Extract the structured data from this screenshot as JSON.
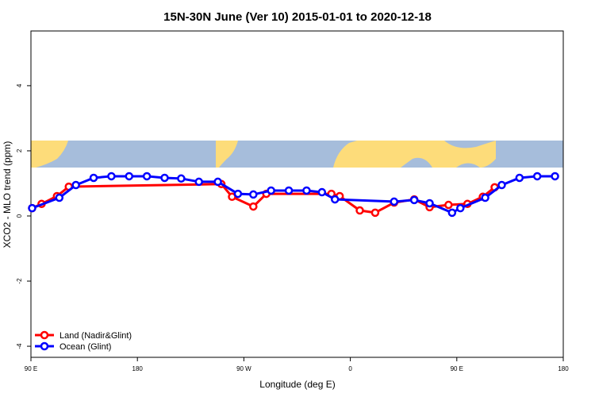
{
  "chart_data": {
    "type": "line",
    "title": "15N-30N June (Ver 10)   2015-01-01 to 2020-12-18",
    "x_label": "Longitude (deg E)",
    "y_label": "XCO2 - MLO trend (ppm)",
    "xlim": [
      90,
      540
    ],
    "ylim": [
      -4.34,
      5.68
    ],
    "xticks": [
      {
        "value": 90,
        "label": "90 E"
      },
      180,
      {
        "value": 270,
        "label": "90 W"
      },
      {
        "value": 360,
        "label": "0"
      },
      {
        "value": 450,
        "label": "90 E"
      },
      {
        "value": 540,
        "label": "180"
      }
    ],
    "yticks": [
      -4,
      -2,
      0,
      2,
      4
    ],
    "legend": "bottom-left",
    "series": [
      {
        "name": "Land (Nadir&Glint)",
        "color": "#ff0000",
        "x": [
          91,
          99,
          112,
          122,
          251,
          260,
          278,
          289,
          344,
          351,
          368,
          381,
          397,
          414,
          427,
          443,
          459,
          472,
          482
        ],
        "values": [
          0.24,
          0.37,
          0.61,
          0.9,
          0.98,
          0.59,
          0.29,
          0.68,
          0.68,
          0.61,
          0.17,
          0.1,
          0.41,
          0.51,
          0.27,
          0.34,
          0.37,
          0.59,
          0.88
        ]
      },
      {
        "name": "Ocean (Glint)",
        "color": "#0000ff",
        "x": [
          91,
          114,
          128,
          143,
          158,
          173,
          188,
          203,
          217,
          232,
          248,
          265,
          278,
          293,
          308,
          323,
          336,
          347,
          397,
          414,
          427,
          446,
          453,
          474,
          488,
          503,
          518,
          533
        ],
        "values": [
          0.24,
          0.56,
          0.95,
          1.17,
          1.22,
          1.22,
          1.22,
          1.17,
          1.15,
          1.05,
          1.05,
          0.68,
          0.66,
          0.78,
          0.78,
          0.78,
          0.73,
          0.51,
          0.44,
          0.49,
          0.39,
          0.1,
          0.24,
          0.56,
          0.95,
          1.17,
          1.22,
          1.22
        ]
      }
    ]
  }
}
